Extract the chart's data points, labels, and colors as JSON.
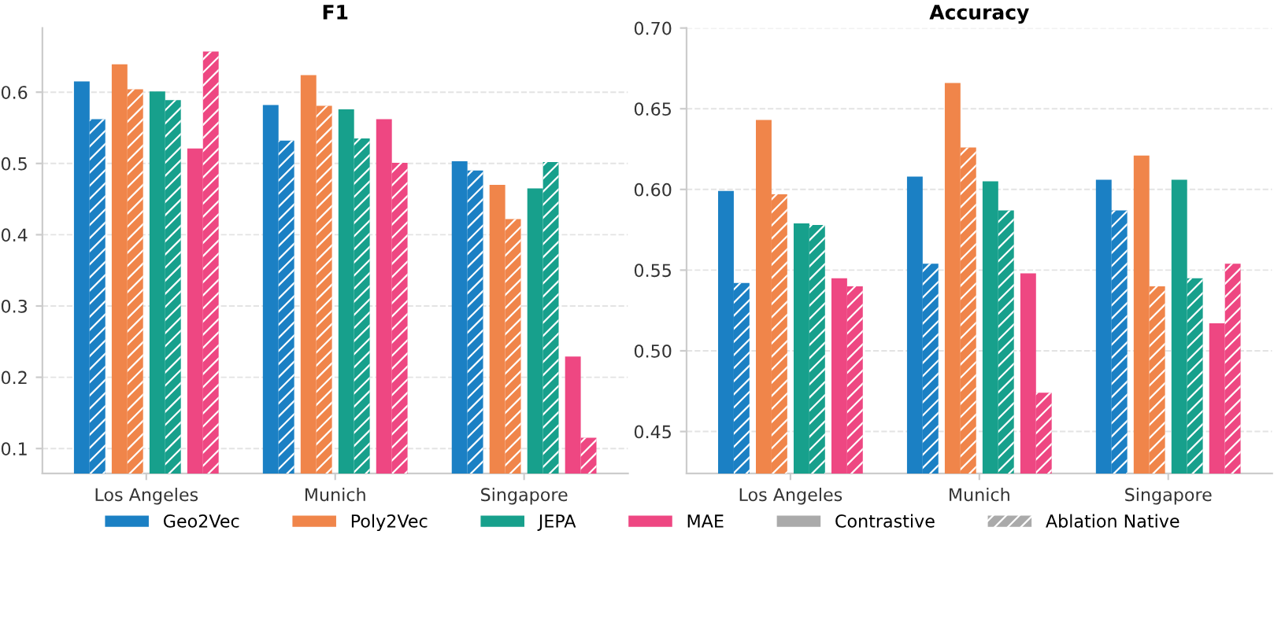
{
  "chart_data": [
    {
      "type": "bar",
      "title": "F1",
      "categories": [
        "Los Angeles",
        "Munich",
        "Singapore"
      ],
      "ylim": [
        0.065,
        0.69
      ],
      "yticks": [
        0.1,
        0.2,
        0.3,
        0.4,
        0.5,
        0.6
      ],
      "grid": "y",
      "legend": "bottom",
      "annotations": [
        "Contrastive",
        "Ablation Native"
      ],
      "series": [
        {
          "name": "Geo2Vec",
          "color": "#1b80c4",
          "values": [
            0.615,
            0.582,
            0.503
          ]
        },
        {
          "color": "#1b80c4",
          "values": [
            0.562,
            0.532,
            0.49
          ]
        },
        {
          "name": "Poly2Vec",
          "color": "#f0854a",
          "values": [
            0.639,
            0.624,
            0.47
          ]
        },
        {
          "color": "#f0854a",
          "values": [
            0.604,
            0.581,
            0.422
          ]
        },
        {
          "name": "JEPA",
          "color": "#17a08c",
          "values": [
            0.601,
            0.576,
            0.465
          ]
        },
        {
          "color": "#17a08c",
          "values": [
            0.589,
            0.535,
            0.502
          ]
        },
        {
          "name": "MAE",
          "color": "#ee4782",
          "values": [
            0.521,
            0.562,
            0.229
          ]
        },
        {
          "color": "#ee4782",
          "values": [
            0.657,
            0.501,
            0.115
          ]
        }
      ]
    },
    {
      "type": "bar",
      "title": "Accuracy",
      "categories": [
        "Los Angeles",
        "Munich",
        "Singapore"
      ],
      "ylim": [
        0.424,
        0.7
      ],
      "yticks": [
        {
          "value": 0.45,
          "label": "0.45"
        },
        {
          "value": 0.5,
          "label": "0.50"
        },
        {
          "value": 0.55,
          "label": "0.55"
        },
        {
          "value": 0.6,
          "label": "0.60"
        },
        {
          "value": 0.65,
          "label": "0.65"
        },
        {
          "value": 0.7,
          "label": "0.70"
        }
      ],
      "grid": "y",
      "series": [
        {
          "name": "Geo2Vec",
          "color": "#1b80c4",
          "values": [
            0.599,
            0.608,
            0.606
          ]
        },
        {
          "color": "#1b80c4",
          "values": [
            0.542,
            0.554,
            0.587
          ]
        },
        {
          "name": "Poly2Vec",
          "color": "#f0854a",
          "values": [
            0.643,
            0.666,
            0.621
          ]
        },
        {
          "color": "#f0854a",
          "values": [
            0.597,
            0.626,
            0.54
          ]
        },
        {
          "name": "JEPA",
          "color": "#17a08c",
          "values": [
            0.579,
            0.605,
            0.606
          ]
        },
        {
          "color": "#17a08c",
          "values": [
            0.578,
            0.587,
            0.545
          ]
        },
        {
          "name": "MAE",
          "color": "#ee4782",
          "values": [
            0.545,
            0.548,
            0.517
          ]
        },
        {
          "color": "#ee4782",
          "values": [
            0.54,
            0.474,
            0.554
          ]
        }
      ]
    }
  ]
}
